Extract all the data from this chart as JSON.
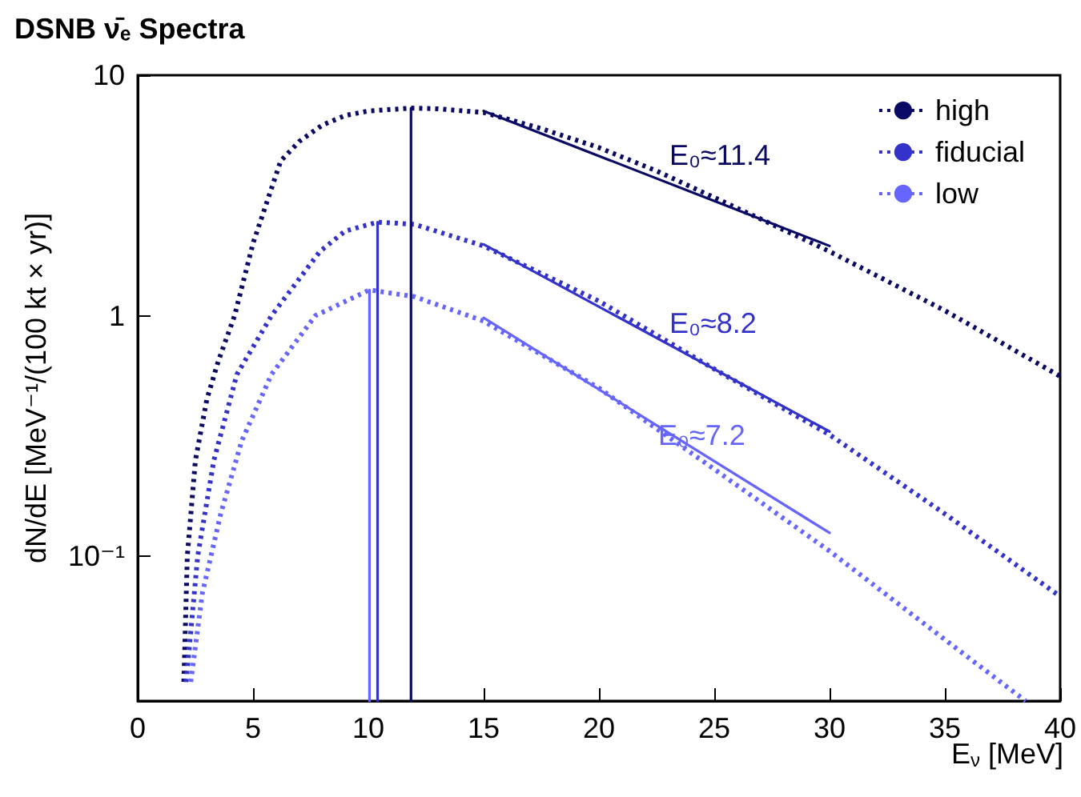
{
  "chart_data": {
    "type": "line",
    "title": "DSNB ν̄ₑ Spectra",
    "xlabel": "E$_{ν}$ [MeV]",
    "ylabel": "dN/dE [MeV⁻¹/(100 kt × yr)]",
    "log": "y",
    "grid": false,
    "legend": "top right",
    "marker": "none",
    "xlim": [
      0,
      40
    ],
    "xticks": [
      0,
      5,
      10,
      15,
      20,
      25,
      30,
      35,
      40
    ],
    "ylim": [
      0.025,
      10
    ],
    "yticks": [
      {
        "value": 0.1,
        "label": "10⁻¹"
      },
      1,
      10
    ],
    "annotations": [
      "E₀≈11.4",
      "E₀≈8.2",
      "E₀≈7.2"
    ],
    "series": [
      {
        "name": "high",
        "color": "#0a0a66",
        "line_style": "dotted",
        "x": [
          2,
          2.15,
          2.5,
          3,
          3.5,
          4.2,
          5,
          6.2,
          7,
          8,
          9,
          10,
          11.85,
          13,
          15,
          17.5,
          20,
          22.5,
          25,
          27.5,
          30,
          35,
          40
        ],
        "values": [
          0.03,
          0.1,
          0.25,
          0.45,
          0.65,
          1.0,
          2.0,
          4.4,
          5.3,
          6.2,
          6.8,
          7.1,
          7.3,
          7.25,
          7.0,
          6.0,
          5.0,
          4.0,
          3.1,
          2.4,
          1.85,
          1.05,
          0.56
        ]
      },
      {
        "name": "fiducial",
        "color": "#3333cc",
        "line_style": "dotted",
        "x": [
          2.1,
          2.6,
          3.3,
          4.3,
          5.8,
          7.9,
          9,
          10.4,
          12,
          15,
          20,
          25,
          30,
          35,
          40
        ],
        "values": [
          0.03,
          0.1,
          0.25,
          0.57,
          1.0,
          1.85,
          2.25,
          2.45,
          2.4,
          1.95,
          1.15,
          0.6,
          0.32,
          0.15,
          0.068
        ]
      },
      {
        "name": "low",
        "color": "#6666ff",
        "line_style": "dotted",
        "x": [
          2.3,
          2.8,
          3.6,
          4.5,
          5.8,
          7.7,
          10.05,
          12,
          15,
          20,
          25,
          30,
          35,
          38.5
        ],
        "values": [
          0.03,
          0.07,
          0.15,
          0.3,
          0.57,
          1.0,
          1.28,
          1.2,
          0.95,
          0.5,
          0.23,
          0.105,
          0.045,
          0.025
        ]
      },
      {
        "color": "#0a0a66",
        "line_style": "solid",
        "x": [
          15,
          30
        ],
        "values": [
          7.1,
          1.95
        ]
      },
      {
        "color": "#3333cc",
        "line_style": "solid",
        "x": [
          15,
          30
        ],
        "values": [
          1.98,
          0.33
        ]
      },
      {
        "color": "#6666ff",
        "line_style": "solid",
        "x": [
          15,
          30
        ],
        "values": [
          0.98,
          0.125
        ]
      },
      {
        "color": "#0a0a66",
        "line_style": "solid",
        "x": [
          11.85,
          11.85
        ],
        "values": [
          0.025,
          7.3
        ]
      },
      {
        "color": "#3333cc",
        "line_style": "solid",
        "x": [
          10.4,
          10.4
        ],
        "values": [
          0.025,
          2.45
        ]
      },
      {
        "color": "#6666ff",
        "line_style": "solid",
        "x": [
          10.05,
          10.05
        ],
        "values": [
          0.025,
          1.28
        ]
      }
    ]
  }
}
